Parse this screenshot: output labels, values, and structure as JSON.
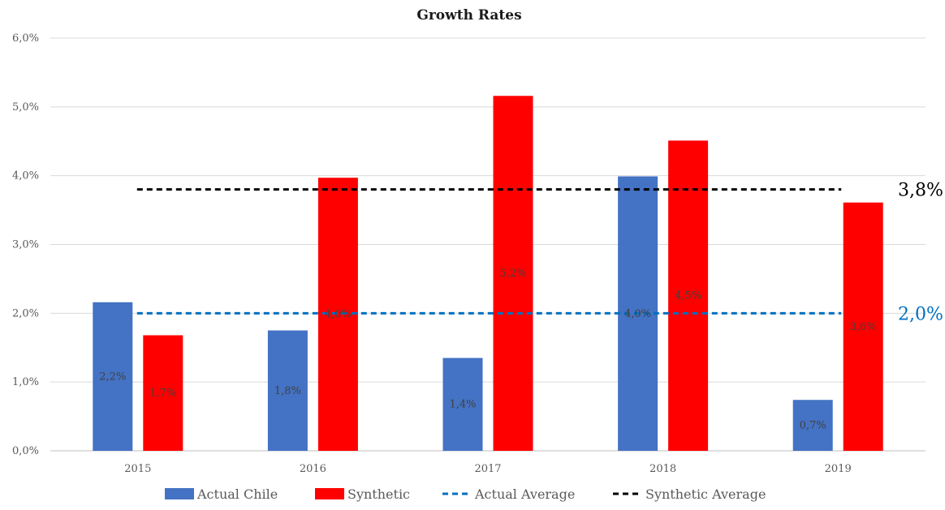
{
  "chart_data": {
    "type": "bar",
    "title": "Growth Rates",
    "categories": [
      "2015",
      "2016",
      "2017",
      "2018",
      "2019"
    ],
    "y_ticks": [
      "0,0%",
      "1,0%",
      "2,0%",
      "3,0%",
      "4,0%",
      "5,0%",
      "6,0%"
    ],
    "ylim": [
      0,
      6
    ],
    "grid": true,
    "legend_position": "bottom",
    "series": [
      {
        "name": "Actual Chile",
        "color": "#4472C4",
        "values": [
          2.16,
          1.75,
          1.35,
          3.99,
          0.74
        ],
        "labels": [
          "2,2%",
          "1,8%",
          "1,4%",
          "4,0%",
          "0,7%"
        ]
      },
      {
        "name": "Synthetic",
        "color": "#FF0000",
        "values": [
          1.68,
          3.97,
          5.16,
          4.51,
          3.61
        ],
        "labels": [
          "1,7%",
          "4,0%",
          "5,2%",
          "4,5%",
          "3,6%"
        ]
      }
    ],
    "reference_lines": [
      {
        "name": "Actual Average",
        "value": 2.0,
        "label": "2,0%",
        "color": "#0070C0",
        "style": "dashed"
      },
      {
        "name": "Synthetic Average",
        "value": 3.8,
        "label": "3,8%",
        "color": "#000000",
        "style": "dashed"
      }
    ]
  }
}
